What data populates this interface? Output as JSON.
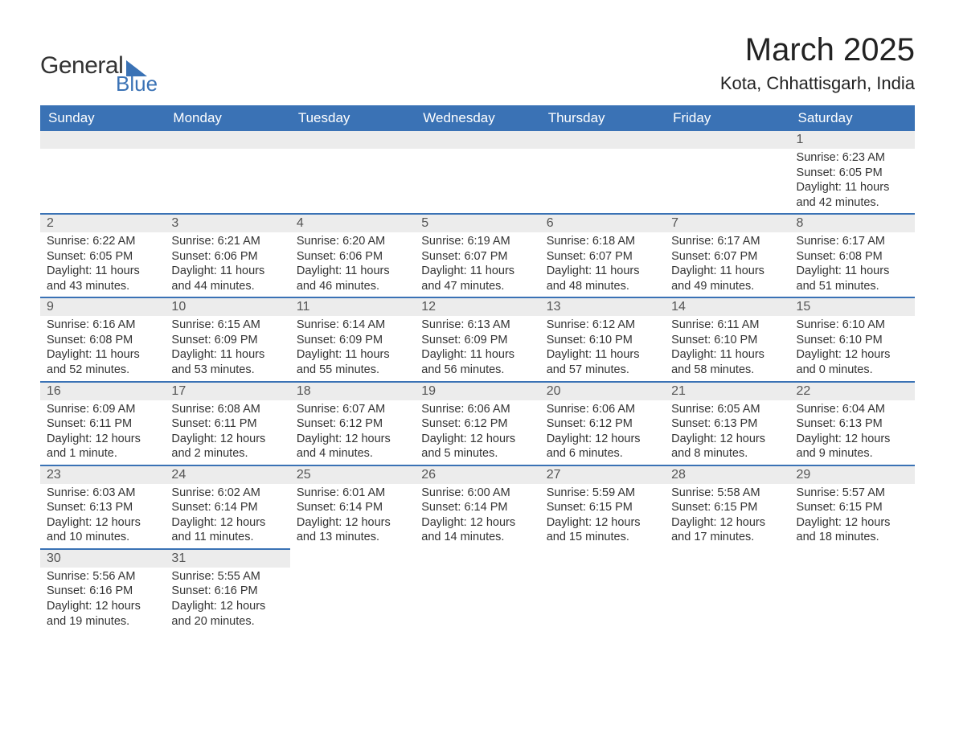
{
  "logo": {
    "word1": "General",
    "word2": "Blue"
  },
  "title": {
    "month_year": "March 2025",
    "location": "Kota, Chhattisgarh, India"
  },
  "colors": {
    "header_bg": "#3a72b5",
    "header_text": "#ffffff",
    "daynum_bg": "#ececec",
    "border": "#3a72b5",
    "text": "#333333",
    "logo_accent": "#3a72b5"
  },
  "typography": {
    "title_fontsize": 40,
    "location_fontsize": 22,
    "header_fontsize": 17,
    "daynum_fontsize": 16,
    "body_fontsize": 14.5
  },
  "calendar": {
    "columns": [
      "Sunday",
      "Monday",
      "Tuesday",
      "Wednesday",
      "Thursday",
      "Friday",
      "Saturday"
    ],
    "weeks": [
      [
        null,
        null,
        null,
        null,
        null,
        null,
        {
          "n": "1",
          "sunrise": "6:23 AM",
          "sunset": "6:05 PM",
          "daylight": "11 hours and 42 minutes."
        }
      ],
      [
        {
          "n": "2",
          "sunrise": "6:22 AM",
          "sunset": "6:05 PM",
          "daylight": "11 hours and 43 minutes."
        },
        {
          "n": "3",
          "sunrise": "6:21 AM",
          "sunset": "6:06 PM",
          "daylight": "11 hours and 44 minutes."
        },
        {
          "n": "4",
          "sunrise": "6:20 AM",
          "sunset": "6:06 PM",
          "daylight": "11 hours and 46 minutes."
        },
        {
          "n": "5",
          "sunrise": "6:19 AM",
          "sunset": "6:07 PM",
          "daylight": "11 hours and 47 minutes."
        },
        {
          "n": "6",
          "sunrise": "6:18 AM",
          "sunset": "6:07 PM",
          "daylight": "11 hours and 48 minutes."
        },
        {
          "n": "7",
          "sunrise": "6:17 AM",
          "sunset": "6:07 PM",
          "daylight": "11 hours and 49 minutes."
        },
        {
          "n": "8",
          "sunrise": "6:17 AM",
          "sunset": "6:08 PM",
          "daylight": "11 hours and 51 minutes."
        }
      ],
      [
        {
          "n": "9",
          "sunrise": "6:16 AM",
          "sunset": "6:08 PM",
          "daylight": "11 hours and 52 minutes."
        },
        {
          "n": "10",
          "sunrise": "6:15 AM",
          "sunset": "6:09 PM",
          "daylight": "11 hours and 53 minutes."
        },
        {
          "n": "11",
          "sunrise": "6:14 AM",
          "sunset": "6:09 PM",
          "daylight": "11 hours and 55 minutes."
        },
        {
          "n": "12",
          "sunrise": "6:13 AM",
          "sunset": "6:09 PM",
          "daylight": "11 hours and 56 minutes."
        },
        {
          "n": "13",
          "sunrise": "6:12 AM",
          "sunset": "6:10 PM",
          "daylight": "11 hours and 57 minutes."
        },
        {
          "n": "14",
          "sunrise": "6:11 AM",
          "sunset": "6:10 PM",
          "daylight": "11 hours and 58 minutes."
        },
        {
          "n": "15",
          "sunrise": "6:10 AM",
          "sunset": "6:10 PM",
          "daylight": "12 hours and 0 minutes."
        }
      ],
      [
        {
          "n": "16",
          "sunrise": "6:09 AM",
          "sunset": "6:11 PM",
          "daylight": "12 hours and 1 minute."
        },
        {
          "n": "17",
          "sunrise": "6:08 AM",
          "sunset": "6:11 PM",
          "daylight": "12 hours and 2 minutes."
        },
        {
          "n": "18",
          "sunrise": "6:07 AM",
          "sunset": "6:12 PM",
          "daylight": "12 hours and 4 minutes."
        },
        {
          "n": "19",
          "sunrise": "6:06 AM",
          "sunset": "6:12 PM",
          "daylight": "12 hours and 5 minutes."
        },
        {
          "n": "20",
          "sunrise": "6:06 AM",
          "sunset": "6:12 PM",
          "daylight": "12 hours and 6 minutes."
        },
        {
          "n": "21",
          "sunrise": "6:05 AM",
          "sunset": "6:13 PM",
          "daylight": "12 hours and 8 minutes."
        },
        {
          "n": "22",
          "sunrise": "6:04 AM",
          "sunset": "6:13 PM",
          "daylight": "12 hours and 9 minutes."
        }
      ],
      [
        {
          "n": "23",
          "sunrise": "6:03 AM",
          "sunset": "6:13 PM",
          "daylight": "12 hours and 10 minutes."
        },
        {
          "n": "24",
          "sunrise": "6:02 AM",
          "sunset": "6:14 PM",
          "daylight": "12 hours and 11 minutes."
        },
        {
          "n": "25",
          "sunrise": "6:01 AM",
          "sunset": "6:14 PM",
          "daylight": "12 hours and 13 minutes."
        },
        {
          "n": "26",
          "sunrise": "6:00 AM",
          "sunset": "6:14 PM",
          "daylight": "12 hours and 14 minutes."
        },
        {
          "n": "27",
          "sunrise": "5:59 AM",
          "sunset": "6:15 PM",
          "daylight": "12 hours and 15 minutes."
        },
        {
          "n": "28",
          "sunrise": "5:58 AM",
          "sunset": "6:15 PM",
          "daylight": "12 hours and 17 minutes."
        },
        {
          "n": "29",
          "sunrise": "5:57 AM",
          "sunset": "6:15 PM",
          "daylight": "12 hours and 18 minutes."
        }
      ],
      [
        {
          "n": "30",
          "sunrise": "5:56 AM",
          "sunset": "6:16 PM",
          "daylight": "12 hours and 19 minutes."
        },
        {
          "n": "31",
          "sunrise": "5:55 AM",
          "sunset": "6:16 PM",
          "daylight": "12 hours and 20 minutes."
        },
        null,
        null,
        null,
        null,
        null
      ]
    ],
    "labels": {
      "sunrise": "Sunrise:",
      "sunset": "Sunset:",
      "daylight": "Daylight:"
    }
  }
}
